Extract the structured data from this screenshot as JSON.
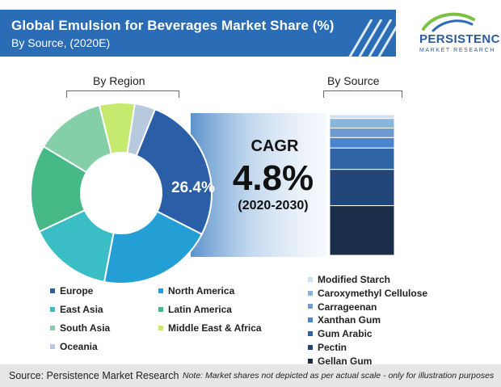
{
  "header": {
    "title": "Global Emulsion for Beverages Market Share (%)",
    "subtitle": "By Source, (2020E)"
  },
  "logo": {
    "name": "PERSISTENCE",
    "tagline": "MARKET RESEARCH"
  },
  "colors": {
    "header_blue": "#2a6cb5",
    "cagr_band": "#4a86c5"
  },
  "labels": {
    "by_region": "By Region",
    "by_source": "By Source"
  },
  "cagr": {
    "label": "CAGR",
    "value": "4.8%",
    "period": "(2020-2030)"
  },
  "chart_data": [
    {
      "type": "pie",
      "variant": "donut",
      "title": "By Region",
      "highlight_label": "26.4%",
      "categories": [
        "Europe",
        "North America",
        "East Asia",
        "Latin America",
        "South Asia",
        "Middle East & Africa",
        "Oceania"
      ],
      "values": [
        26.4,
        20.5,
        15.0,
        15.6,
        12.5,
        6.3,
        3.7
      ],
      "colors": [
        "#2a5fa8",
        "#239fd6",
        "#3bbdc6",
        "#46b987",
        "#84cfa8",
        "#c6ea70",
        "#b7c9dc"
      ]
    },
    {
      "type": "bar",
      "variant": "stacked-100",
      "title": "By Source",
      "categories": [
        "Modified Starch",
        "Caroxymethyl Cellulose",
        "Carrageenan",
        "Xanthan Gum",
        "Gum Arabic",
        "Pectin",
        "Gellan Gum"
      ],
      "values": [
        2.7,
        6.8,
        6.8,
        7.4,
        15.2,
        25.8,
        35.3
      ],
      "colors": [
        "#cfe0f2",
        "#8cb3dd",
        "#6e9bd0",
        "#4a86cf",
        "#2f64a4",
        "#22467a",
        "#1a2e4a"
      ]
    }
  ],
  "legend": {
    "region": [
      {
        "label": "Europe",
        "color": "#2a5fa8"
      },
      {
        "label": "North America",
        "color": "#239fd6"
      },
      {
        "label": "East Asia",
        "color": "#3bbdc6"
      },
      {
        "label": "Latin America",
        "color": "#46b987"
      },
      {
        "label": "South Asia",
        "color": "#84cfa8"
      },
      {
        "label": "Middle East & Africa",
        "color": "#c6ea70"
      },
      {
        "label": "Oceania",
        "color": "#b7c9dc"
      }
    ],
    "source": [
      {
        "label": "Modified Starch",
        "color": "#cfe0f2"
      },
      {
        "label": "Caroxymethyl Cellulose",
        "color": "#8cb3dd"
      },
      {
        "label": "Carrageenan",
        "color": "#6e9bd0"
      },
      {
        "label": "Xanthan Gum",
        "color": "#4a86cf"
      },
      {
        "label": "Gum Arabic",
        "color": "#2f64a4"
      },
      {
        "label": "Pectin",
        "color": "#22467a"
      },
      {
        "label": "Gellan Gum",
        "color": "#1a2e4a"
      }
    ]
  },
  "footer": {
    "source": "Source: Persistence Market Research",
    "note": "Note: Market shares not depicted as per actual scale - only for illustration purposes"
  }
}
